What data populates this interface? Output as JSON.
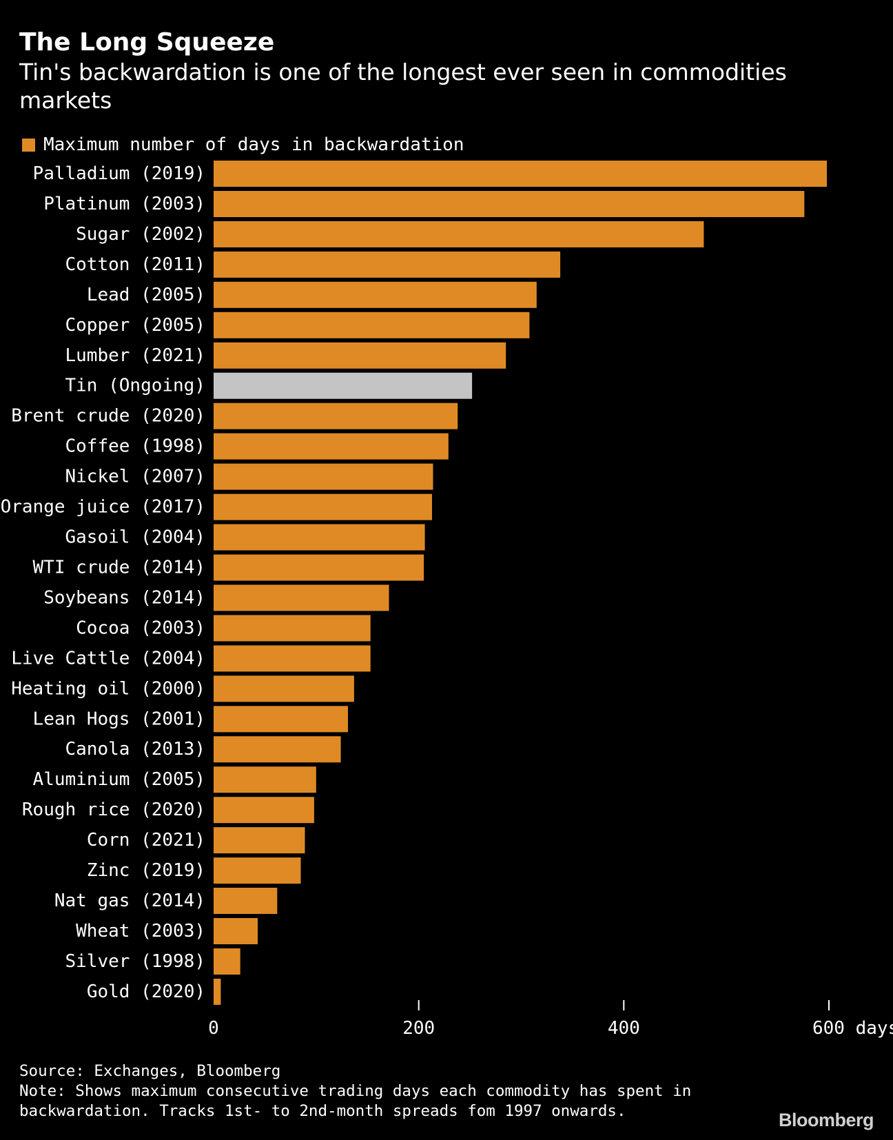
{
  "title": "The Long Squeeze",
  "subtitle": "Tin's backwardation is one of the longest ever seen in commodities markets",
  "source": "Source: Exchanges, Bloomberg",
  "note": "Note: Shows maximum consecutive trading days each commodity has spent in backwardation. Tracks 1st- to 2nd-month spreads fom 1997 onwards.",
  "brand": "Bloomberg",
  "colors": {
    "background": "#000000",
    "bar": "#e08a26",
    "highlight": "#c4c4c4",
    "text": "#ffffff"
  },
  "chart_data": {
    "type": "bar",
    "orientation": "horizontal",
    "legend": "Maximum number of days in backwardation",
    "legend_position": "top-left",
    "x_unit": "days",
    "xlim": [
      0,
      600
    ],
    "xticks": [
      0,
      200,
      400,
      600
    ],
    "xtick_labels": [
      "0",
      "200",
      "400",
      "600 days"
    ],
    "grid": false,
    "highlight_category": "Tin (Ongoing)",
    "categories": [
      "Palladium (2019)",
      "Platinum (2003)",
      "Sugar (2002)",
      "Cotton (2011)",
      "Lead (2005)",
      "Copper (2005)",
      "Lumber (2021)",
      "Tin (Ongoing)",
      "Brent crude (2020)",
      "Coffee (1998)",
      "Nickel (2007)",
      "Orange juice (2017)",
      "Gasoil (2004)",
      "WTI crude (2014)",
      "Soybeans (2014)",
      "Cocoa (2003)",
      "Live Cattle (2004)",
      "Heating oil (2000)",
      "Lean Hogs (2001)",
      "Canola (2013)",
      "Aluminium (2005)",
      "Rough rice (2020)",
      "Corn (2021)",
      "Zinc (2019)",
      "Nat gas (2014)",
      "Wheat (2003)",
      "Silver (1998)",
      "Gold (2020)"
    ],
    "series": [
      {
        "name": "Maximum number of days in backwardation",
        "values": [
          598,
          576,
          478,
          338,
          315,
          308,
          285,
          252,
          238,
          229,
          214,
          213,
          206,
          205,
          171,
          153,
          153,
          137,
          131,
          124,
          100,
          98,
          89,
          85,
          62,
          43,
          26,
          7
        ]
      }
    ]
  }
}
